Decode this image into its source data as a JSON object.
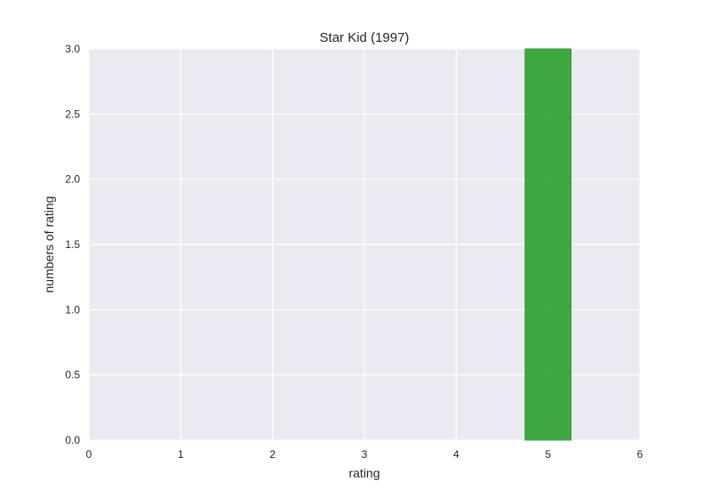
{
  "chart_data": {
    "type": "bar",
    "title": "Star Kid (1997)",
    "xlabel": "rating",
    "ylabel": "numbers of rating",
    "xlim": [
      0,
      6
    ],
    "ylim": [
      0,
      3.0
    ],
    "x_ticks": [
      "0",
      "1",
      "2",
      "3",
      "4",
      "5",
      "6"
    ],
    "y_ticks": [
      "0.0",
      "0.5",
      "1.0",
      "1.5",
      "2.0",
      "2.5",
      "3.0"
    ],
    "grid": true,
    "bar_width": 0.5,
    "bars": [
      {
        "x": 1,
        "value": 0
      },
      {
        "x": 2,
        "value": 0
      },
      {
        "x": 3,
        "value": 0
      },
      {
        "x": 4,
        "value": 0
      },
      {
        "x": 5,
        "value": 3
      }
    ],
    "colors": {
      "bar": "#2ca02c",
      "background": "#eaeaf2",
      "grid": "#ffffff"
    }
  }
}
